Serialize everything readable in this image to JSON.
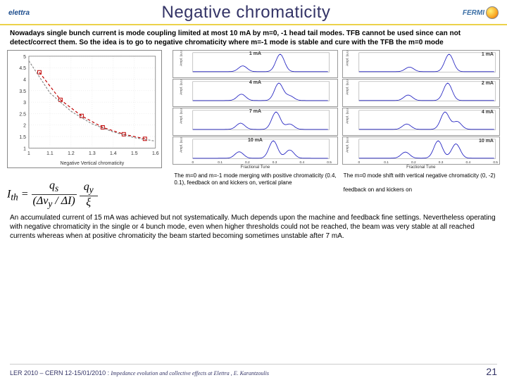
{
  "header": {
    "logo_left": "elettra",
    "title": "Negative chromaticity",
    "logo_right": "FERMI"
  },
  "intro": "Nowadays single bunch current is mode coupling limited at most 10 mA by m=0, -1 head tail modes. TFB cannot be used since can not detect/correct them. So the idea is to go to negative chromaticity where m=-1 mode is stable and cure with the TFB the m=0 mode",
  "left_chart": {
    "type": "line",
    "title": "",
    "xlabel": "Negative Vertical chromaticity",
    "xlim": [
      1,
      1.6
    ],
    "xticks": [
      1,
      1.1,
      1.2,
      1.3,
      1.4,
      1.5,
      1.6
    ],
    "ylim": [
      1,
      5
    ],
    "yticks": [
      1,
      1.5,
      2,
      2.5,
      3,
      3.5,
      4,
      4.5,
      5
    ],
    "series": [
      {
        "name": "dashed1",
        "color": "#c00000",
        "dash": "4 3",
        "marker": "square",
        "x": [
          1.05,
          1.15,
          1.25,
          1.35,
          1.45,
          1.55
        ],
        "y": [
          4.3,
          3.1,
          2.4,
          1.9,
          1.6,
          1.4
        ]
      },
      {
        "name": "dashed2",
        "color": "#888888",
        "dash": "3 2",
        "marker": "none",
        "x": [
          1.0,
          1.1,
          1.2,
          1.3,
          1.4,
          1.5,
          1.6
        ],
        "y": [
          4.8,
          3.4,
          2.6,
          2.05,
          1.7,
          1.45,
          1.3
        ]
      }
    ],
    "background": "#ffffff",
    "grid_color": "#dddddd"
  },
  "formula": {
    "lhs": "I",
    "sub_lhs": "th",
    "rhs_num_a": "q",
    "rhs_num_a_sub": "s",
    "rhs_num_b": "q",
    "rhs_num_b_sub": "y",
    "denom_a": "Δν",
    "denom_a_sub": "y",
    "denom_b": "ΔI",
    "denom_c": "ξ"
  },
  "mid_charts": {
    "xlabel": "Fractional Tune",
    "ylabel_prefix": "Ampl. (a.u.)",
    "labels": [
      "1 mA",
      "4 mA",
      "7 mA",
      "10 mA"
    ],
    "xlim": [
      0,
      0.5
    ],
    "background": "#ffffff",
    "line_color": "#2020c0",
    "series": [
      {
        "peaks": [
          {
            "x": 0.183,
            "h": 0.3
          },
          {
            "x": 0.32,
            "h": 0.9
          }
        ],
        "ylim": [
          0,
          0.2
        ],
        "yticks": [
          0,
          0.1,
          0.2
        ]
      },
      {
        "peaks": [
          {
            "x": 0.178,
            "h": 0.35
          },
          {
            "x": 0.315,
            "h": 0.95
          },
          {
            "x": 0.355,
            "h": 0.25
          }
        ],
        "ylim": [
          0,
          0.1
        ],
        "yticks": [
          0,
          0.05,
          0.1
        ]
      },
      {
        "peaks": [
          {
            "x": 0.175,
            "h": 0.35
          },
          {
            "x": 0.305,
            "h": 0.98
          },
          {
            "x": 0.355,
            "h": 0.3
          }
        ],
        "ylim": [
          0,
          0.2
        ],
        "yticks": [
          0,
          0.1,
          0.2
        ]
      },
      {
        "peaks": [
          {
            "x": 0.17,
            "h": 0.35
          },
          {
            "x": 0.295,
            "h": 0.95
          },
          {
            "x": 0.355,
            "h": 0.45
          }
        ],
        "ylim": [
          0,
          0.1
        ],
        "yticks": [
          0,
          0.05,
          0.1
        ]
      }
    ]
  },
  "right_charts": {
    "xlabel": "Fractional Tune",
    "ylabel_prefix": "Ampl. (a.u.)",
    "labels": [
      "1 mA",
      "2 mA",
      "4 mA",
      "10 mA"
    ],
    "xlim": [
      0,
      0.5
    ],
    "background": "#ffffff",
    "line_color": "#2020c0",
    "series": [
      {
        "peaks": [
          {
            "x": 0.185,
            "h": 0.25
          },
          {
            "x": 0.33,
            "h": 0.95
          }
        ],
        "ylim": [
          0,
          0.03
        ]
      },
      {
        "peaks": [
          {
            "x": 0.18,
            "h": 0.3
          },
          {
            "x": 0.325,
            "h": 0.95
          }
        ],
        "ylim": [
          0,
          0.05
        ]
      },
      {
        "peaks": [
          {
            "x": 0.175,
            "h": 0.28
          },
          {
            "x": 0.315,
            "h": 0.9
          },
          {
            "x": 0.36,
            "h": 0.4
          }
        ],
        "ylim": [
          0,
          0.2
        ]
      },
      {
        "peaks": [
          {
            "x": 0.17,
            "h": 0.3
          },
          {
            "x": 0.29,
            "h": 0.85
          },
          {
            "x": 0.355,
            "h": 0.7
          }
        ],
        "ylim": [
          0,
          0.05
        ]
      }
    ]
  },
  "caption_mid": "The m=0 and m=-1 mode merging with positive chromaticity (0.4, 0.1), feedback on and kickers on, vertical plane",
  "caption_right": "The m=0 mode shift with vertical negative chromaticity (0, -2)\n\nfeedback on and kickers on",
  "conclusion": "An accumulated current of 15 mA was achieved but not systematically. Much depends upon the machine and feedback fine settings. Nevertheless operating with negative chromaticity in the single or 4 bunch mode, even when higher thresholds could not be reached, the beam was very stable at all reached currents whereas when at positive chromaticity the beam started becoming sometimes unstable after 7 mA.",
  "footer": {
    "conf": "LER 2010 – CERN 12-15/01/2010 :",
    "subtitle": "Impedance evolution and collective effects at Elettra , E. Karantzoulis",
    "page": "21"
  }
}
